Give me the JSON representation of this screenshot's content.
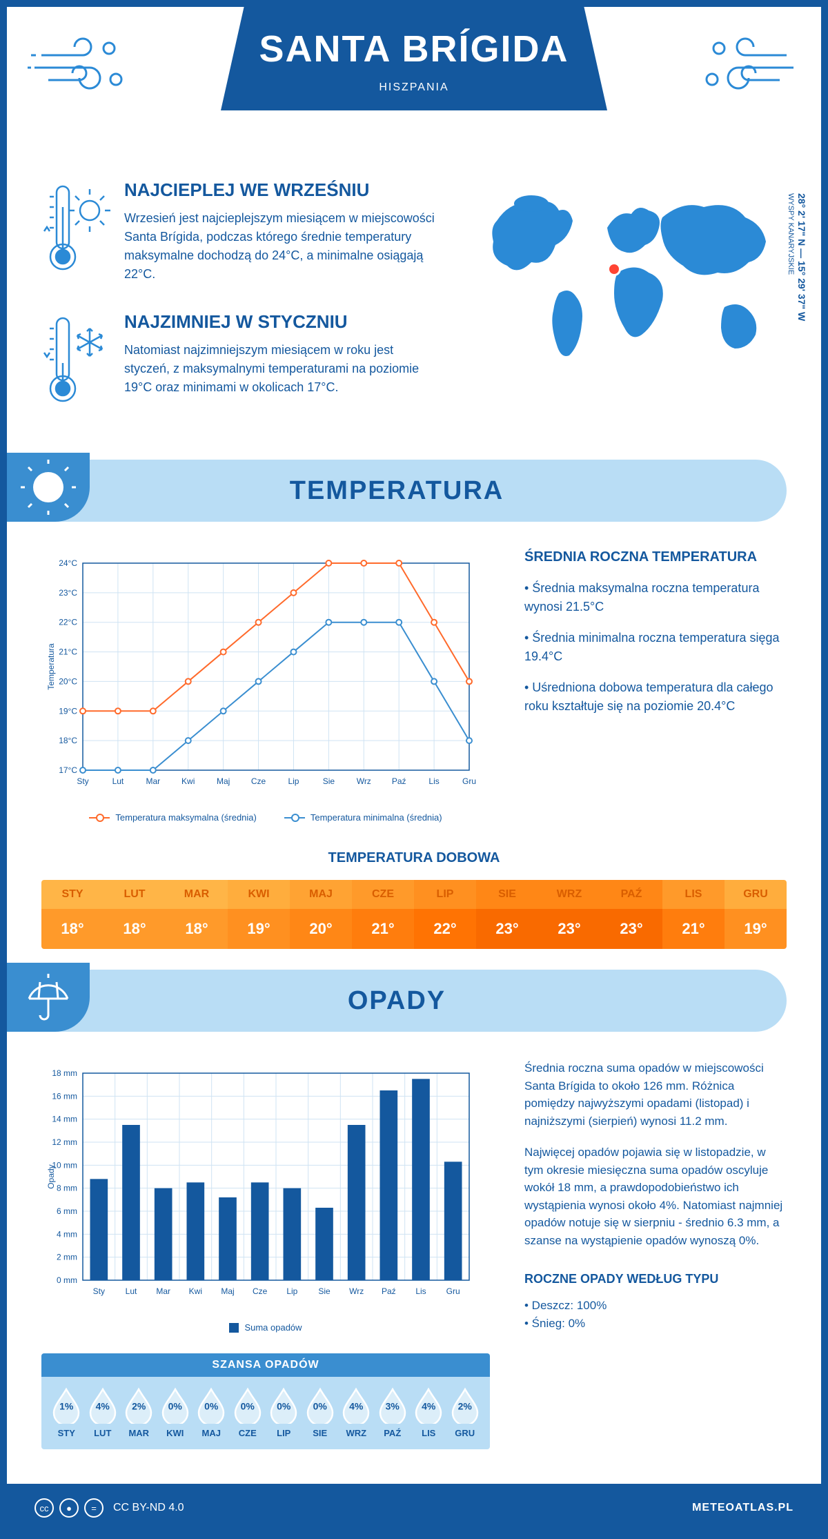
{
  "header": {
    "title": "SANTA BRÍGIDA",
    "subtitle": "HISZPANIA"
  },
  "coords": {
    "main": "28° 2' 17\" N — 15° 29' 37\" W",
    "sub": "WYSPY KANARYJSKIE"
  },
  "intro": {
    "warm": {
      "title": "NAJCIEPLEJ WE WRZEŚNIU",
      "text": "Wrzesień jest najcieplejszym miesiącem w miejscowości Santa Brígida, podczas którego średnie temperatury maksymalne dochodzą do 24°C, a minimalne osiągają 22°C."
    },
    "cold": {
      "title": "NAJZIMNIEJ W STYCZNIU",
      "text": "Natomiast najzimniejszym miesiącem w roku jest styczeń, z maksymalnymi temperaturami na poziomie 19°C oraz minimami w okolicach 17°C."
    }
  },
  "sections": {
    "temp_title": "TEMPERATURA",
    "opady_title": "OPADY"
  },
  "temp_chart": {
    "type": "line",
    "months": [
      "Sty",
      "Lut",
      "Mar",
      "Kwi",
      "Maj",
      "Cze",
      "Lip",
      "Sie",
      "Wrz",
      "Paź",
      "Lis",
      "Gru"
    ],
    "series": [
      {
        "name": "Temperatura maksymalna (średnia)",
        "color": "#ff6a2b",
        "values": [
          19,
          19,
          19,
          20,
          21,
          22,
          23,
          24,
          24,
          24,
          22,
          20
        ]
      },
      {
        "name": "Temperatura minimalna (średnia)",
        "color": "#3a8ed0",
        "values": [
          17,
          17,
          17,
          18,
          19,
          20,
          21,
          22,
          22,
          22,
          20,
          18
        ]
      }
    ],
    "ylabel": "Temperatura",
    "ylim": [
      17,
      24
    ],
    "ytick_step": 1,
    "grid_color": "#cfe3f3",
    "axis_color": "#14589e",
    "label_fontsize": 12,
    "line_width": 2,
    "marker_radius": 4
  },
  "temp_info": {
    "title": "ŚREDNIA ROCZNA TEMPERATURA",
    "bullets": [
      "• Średnia maksymalna roczna temperatura wynosi 21.5°C",
      "• Średnia minimalna roczna temperatura sięga 19.4°C",
      "• Uśredniona dobowa temperatura dla całego roku kształtuje się na poziomie 20.4°C"
    ]
  },
  "daily": {
    "title": "TEMPERATURA DOBOWA",
    "months": [
      "STY",
      "LUT",
      "MAR",
      "KWI",
      "MAJ",
      "CZE",
      "LIP",
      "SIE",
      "WRZ",
      "PAŹ",
      "LIS",
      "GRU"
    ],
    "values": [
      "18°",
      "18°",
      "18°",
      "19°",
      "20°",
      "21°",
      "22°",
      "23°",
      "23°",
      "23°",
      "21°",
      "19°"
    ],
    "head_colors": [
      "#ffb547",
      "#ffb547",
      "#ffb547",
      "#ffad3d",
      "#ffa333",
      "#ff9a2a",
      "#ff9020",
      "#ff8716",
      "#ff8716",
      "#ff8716",
      "#ff9a2a",
      "#ffad3d"
    ],
    "val_colors": [
      "#ff9a2a",
      "#ff9a2a",
      "#ff9a2a",
      "#ff9020",
      "#ff8716",
      "#ff7d0d",
      "#ff7303",
      "#f96a00",
      "#f96a00",
      "#f96a00",
      "#ff7d0d",
      "#ff9020"
    ],
    "head_text_color": "#d95e00"
  },
  "opady_chart": {
    "type": "bar",
    "months": [
      "Sty",
      "Lut",
      "Mar",
      "Kwi",
      "Maj",
      "Cze",
      "Lip",
      "Sie",
      "Wrz",
      "Paź",
      "Lis",
      "Gru"
    ],
    "values": [
      8.8,
      13.5,
      8.0,
      8.5,
      7.2,
      8.5,
      8.0,
      6.3,
      13.5,
      16.5,
      17.5,
      10.3
    ],
    "bar_color": "#14589e",
    "ylabel": "Opady",
    "ylim": [
      0,
      18
    ],
    "ytick_step": 2,
    "grid_color": "#cfe3f3",
    "axis_color": "#14589e",
    "label_fontsize": 12,
    "bar_width": 0.55,
    "legend": "Suma opadów"
  },
  "opady_info": {
    "p1": "Średnia roczna suma opadów w miejscowości Santa Brígida to około 126 mm. Różnica pomiędzy najwyższymi opadami (listopad) i najniższymi (sierpień) wynosi 11.2 mm.",
    "p2": "Najwięcej opadów pojawia się w listopadzie, w tym okresie miesięczna suma opadów oscyluje wokół 18 mm, a prawdopodobieństwo ich wystąpienia wynosi około 4%. Natomiast najmniej opadów notuje się w sierpniu - średnio 6.3 mm, a szanse na wystąpienie opadów wynoszą 0%.",
    "type_title": "ROCZNE OPADY WEDŁUG TYPU",
    "type_bullets": [
      "• Deszcz: 100%",
      "• Śnieg: 0%"
    ]
  },
  "chance": {
    "title": "SZANSA OPADÓW",
    "months": [
      "STY",
      "LUT",
      "MAR",
      "KWI",
      "MAJ",
      "CZE",
      "LIP",
      "SIE",
      "WRZ",
      "PAŹ",
      "LIS",
      "GRU"
    ],
    "pct": [
      "1%",
      "4%",
      "2%",
      "0%",
      "0%",
      "0%",
      "0%",
      "0%",
      "4%",
      "3%",
      "4%",
      "2%"
    ],
    "drop_stroke": "#ffffff",
    "drop_fill": "#dceef9"
  },
  "footer": {
    "license": "CC BY-ND 4.0",
    "site": "METEOATLAS.PL"
  },
  "colors": {
    "primary": "#14589e",
    "light_blue": "#b9ddf5",
    "mid_blue": "#3a8ed0",
    "map_fill": "#2b8ad6",
    "marker": "#ff4433"
  }
}
